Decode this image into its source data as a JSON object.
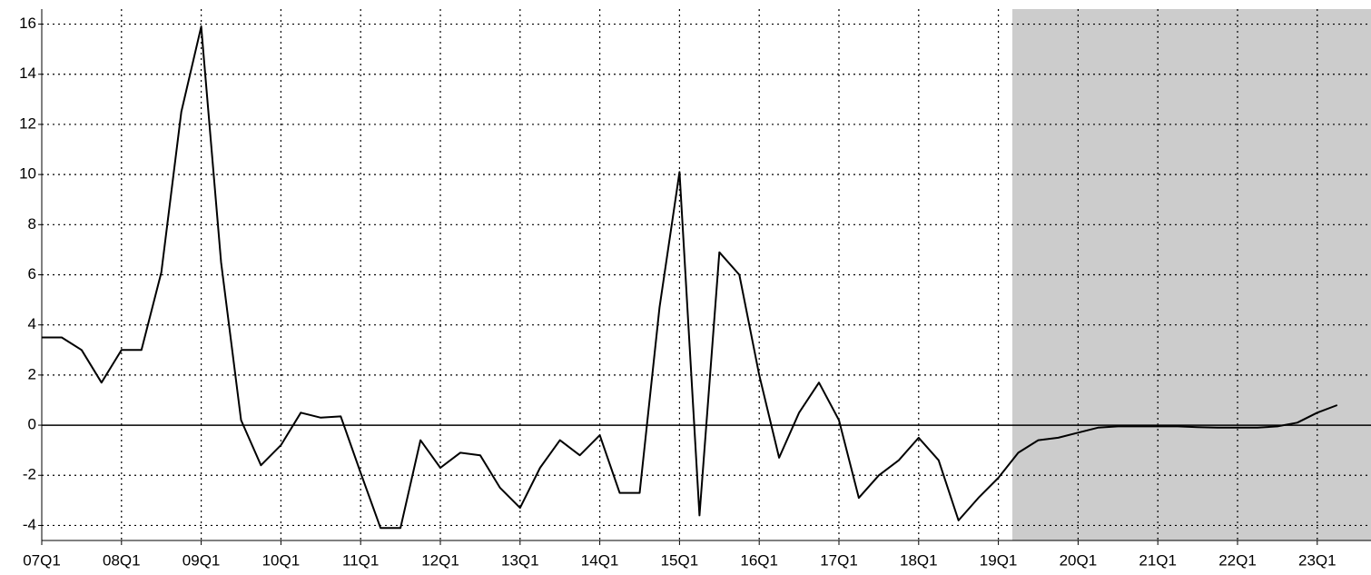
{
  "chart_data": {
    "type": "line",
    "categories": [
      "07Q1",
      null,
      null,
      null,
      "08Q1",
      null,
      null,
      null,
      "09Q1",
      null,
      null,
      null,
      "10Q1",
      null,
      null,
      null,
      "11Q1",
      null,
      null,
      null,
      "12Q1",
      null,
      null,
      null,
      "13Q1",
      null,
      null,
      null,
      "14Q1",
      null,
      null,
      null,
      "15Q1",
      null,
      null,
      null,
      "16Q1",
      null,
      null,
      null,
      "17Q1",
      null,
      null,
      null,
      "18Q1",
      null,
      null,
      null,
      "19Q1",
      null,
      null,
      null,
      "20Q1",
      null,
      null,
      null,
      "21Q1",
      null,
      null,
      null,
      "22Q1",
      null,
      null,
      null,
      "23Q1",
      null
    ],
    "series": [
      {
        "color": "#000000",
        "values": [
          3.5,
          3.5,
          3.0,
          1.7,
          3.0,
          3.0,
          6.1,
          12.5,
          15.9,
          6.5,
          0.2,
          -1.6,
          -0.8,
          0.5,
          0.3,
          0.35,
          -1.9,
          -4.1,
          -4.1,
          -0.6,
          -1.7,
          -1.1,
          -1.2,
          -2.5,
          -3.3,
          -1.7,
          -0.6,
          -1.2,
          -0.4,
          -2.7,
          -2.7,
          4.7,
          10.1,
          -3.6,
          6.9,
          6.0,
          2.0,
          -1.3,
          0.5,
          1.7,
          0.2,
          -2.9,
          -2.0,
          -1.4,
          -0.5,
          -1.4,
          -3.8,
          -2.9,
          -2.1,
          -1.1,
          -0.6,
          -0.5,
          -0.3,
          -0.1,
          -0.05,
          -0.05,
          -0.05,
          -0.05,
          -0.08,
          -0.1,
          -0.1,
          -0.1,
          -0.05,
          0.1,
          0.5,
          0.8
        ]
      }
    ],
    "ylim": [
      -4.6,
      16.6
    ],
    "yticks": [
      -4,
      -2,
      0,
      2,
      4,
      6,
      8,
      10,
      12,
      14,
      16
    ],
    "grid": true
  }
}
